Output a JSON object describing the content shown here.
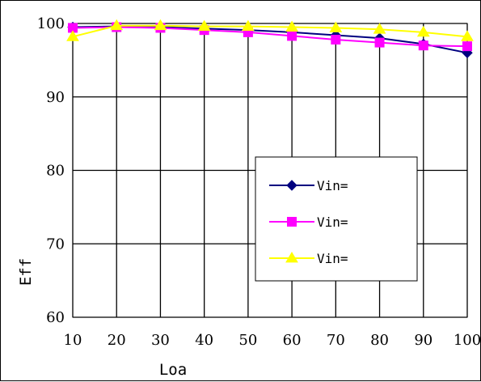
{
  "chart_data": {
    "type": "line",
    "xlabel": "Loa",
    "ylabel": "Eff",
    "xlim": [
      10,
      100
    ],
    "ylim": [
      60,
      100
    ],
    "x_ticks": [
      "10",
      "20",
      "30",
      "40",
      "50",
      "60",
      "70",
      "80",
      "90",
      "100"
    ],
    "y_ticks": [
      "60",
      "70",
      "80",
      "90",
      "100"
    ],
    "grid": true,
    "legend_placement": "center-right",
    "x": [
      10,
      20,
      30,
      40,
      50,
      60,
      70,
      80,
      90,
      100
    ],
    "series": [
      {
        "name": "Vin=",
        "color": "#000080",
        "marker": "diamond",
        "values": [
          99.5,
          99.6,
          99.5,
          99.3,
          99.1,
          98.8,
          98.4,
          98.0,
          97.2,
          96.0
        ]
      },
      {
        "name": "Vin=",
        "color": "#ff00ff",
        "marker": "square",
        "values": [
          99.4,
          99.5,
          99.4,
          99.1,
          98.8,
          98.3,
          97.8,
          97.4,
          97.0,
          96.9
        ]
      },
      {
        "name": "Vin=",
        "color": "#ffff00",
        "marker": "triangle",
        "values": [
          98.2,
          99.7,
          99.7,
          99.6,
          99.6,
          99.5,
          99.4,
          99.2,
          98.8,
          98.2
        ]
      }
    ]
  }
}
